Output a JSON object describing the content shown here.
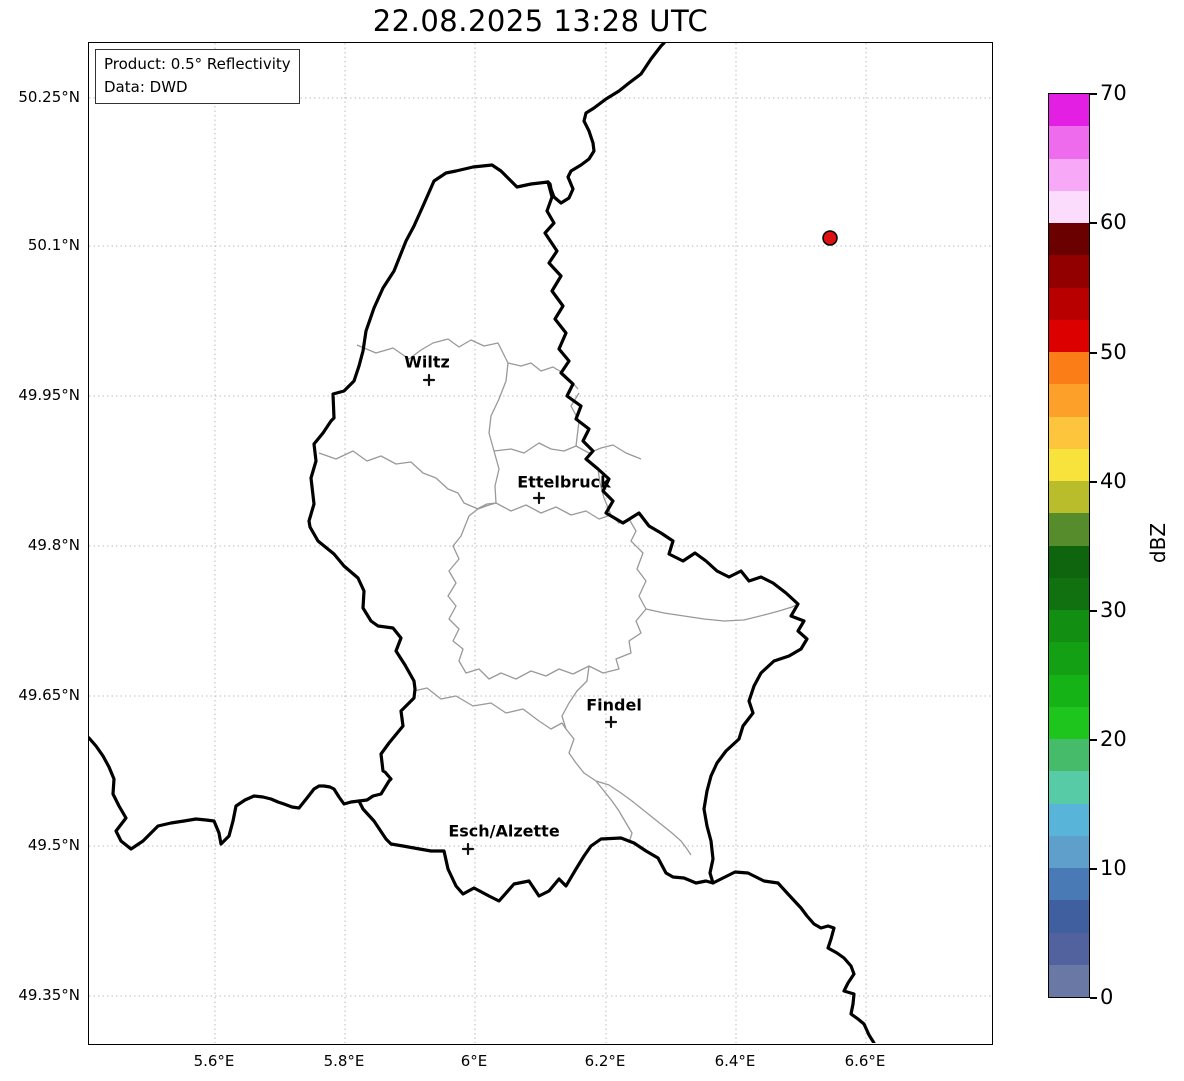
{
  "title": "22.08.2025 13:28 UTC",
  "info_box": {
    "product_line": "Product: 0.5° Reflectivity",
    "data_line": "Data: DWD"
  },
  "map": {
    "cities": [
      {
        "name": "Wiltz"
      },
      {
        "name": "Ettelbruck"
      },
      {
        "name": "Findel"
      },
      {
        "name": "Esch/Alzette"
      }
    ],
    "radar_marker_color": "#dd1111",
    "border_color": "#000000",
    "district_border_color": "#999999",
    "grid_color": "#bbbbbb"
  },
  "axes": {
    "x_ticks": [
      "5.6°E",
      "5.8°E",
      "6°E",
      "6.2°E",
      "6.4°E",
      "6.6°E"
    ],
    "y_ticks": [
      "50.25°N",
      "50.1°N",
      "49.95°N",
      "49.8°N",
      "49.65°N",
      "49.5°N",
      "49.35°N"
    ]
  },
  "colorbar": {
    "unit_label": "dBZ",
    "ticks": [
      "0",
      "10",
      "20",
      "30",
      "40",
      "50",
      "60",
      "70"
    ],
    "min_dbz": 0,
    "max_dbz": 70,
    "segment_step_dbz": 2.5,
    "colors_bottom_to_top": [
      "#6a78a6",
      "#51629e",
      "#3f5f9e",
      "#4a7ab6",
      "#5f9fcb",
      "#58b5d9",
      "#57cba5",
      "#46bb6a",
      "#1dc51d",
      "#16b316",
      "#14a014",
      "#128e12",
      "#117111",
      "#0e650e",
      "#578c2c",
      "#b9bc2b",
      "#f8e23c",
      "#fdc53b",
      "#fda029",
      "#fb7d17",
      "#dc0000",
      "#b80000",
      "#920000",
      "#6a0000",
      "#fcdcfc",
      "#f7a9f7",
      "#ee6bee",
      "#e21fe2"
    ]
  }
}
